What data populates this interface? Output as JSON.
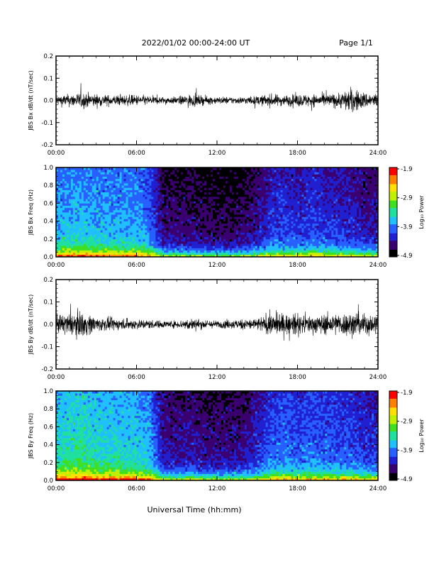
{
  "header": {
    "title": "2022/01/02  00:00-24:00 UT",
    "page": "Page 1/1"
  },
  "xaxis": {
    "label": "Universal Time (hh:mm)",
    "ticks": [
      "00:00",
      "06:00",
      "12:00",
      "18:00",
      "24:00"
    ],
    "range_hours": [
      0,
      24
    ]
  },
  "colors": {
    "colormap": [
      "#000000",
      "#3b0070",
      "#2020d0",
      "#2860ff",
      "#20c0ff",
      "#20e0a0",
      "#40e020",
      "#c0f000",
      "#ffe000",
      "#ff8000",
      "#ff0000"
    ]
  },
  "chart_data": [
    {
      "type": "line",
      "ylabel": "JBS Bx dB/dt (nT/sec)",
      "ylim": [
        -0.2,
        0.2
      ],
      "yticks": [
        "0.2",
        "0.1",
        "0.0",
        "-0.1",
        "-0.2"
      ],
      "x_hours": [
        0,
        1,
        2,
        3,
        4,
        5,
        6,
        7,
        8,
        9,
        10,
        11,
        12,
        13,
        14,
        15,
        16,
        17,
        18,
        19,
        20,
        21,
        22,
        23,
        24
      ],
      "amplitude": [
        0.03,
        0.035,
        0.045,
        0.035,
        0.03,
        0.03,
        0.03,
        0.025,
        0.02,
        0.02,
        0.035,
        0.025,
        0.02,
        0.02,
        0.02,
        0.025,
        0.035,
        0.03,
        0.035,
        0.035,
        0.035,
        0.04,
        0.07,
        0.045,
        0.04
      ]
    },
    {
      "type": "heatmap",
      "ylabel": "JBS Bx Freq (Hz)",
      "ylim": [
        0,
        1
      ],
      "yticks": [
        "1.0",
        "0.8",
        "0.6",
        "0.4",
        "0.2",
        "0.0"
      ],
      "colorbar_label": "Log₁₀ Power",
      "colorbar_ticks": [
        "-1.9",
        "-2.9",
        "-3.9",
        "-4.9"
      ],
      "clim": [
        -4.9,
        -1.9
      ],
      "x_hours": [
        0,
        1,
        2,
        3,
        4,
        5,
        6,
        7,
        8,
        9,
        10,
        11,
        12,
        13,
        14,
        15,
        16,
        17,
        18,
        19,
        20,
        21,
        22,
        23,
        24
      ],
      "level": [
        0.42,
        0.44,
        0.45,
        0.43,
        0.42,
        0.42,
        0.42,
        0.36,
        0.18,
        0.16,
        0.17,
        0.15,
        0.14,
        0.14,
        0.15,
        0.2,
        0.28,
        0.3,
        0.27,
        0.3,
        0.28,
        0.27,
        0.26,
        0.22,
        0.22
      ]
    },
    {
      "type": "line",
      "ylabel": "JBS By dB/dt (nT/sec)",
      "ylim": [
        -0.2,
        0.2
      ],
      "yticks": [
        "0.2",
        "0.1",
        "0.0",
        "-0.1",
        "-0.2"
      ],
      "x_hours": [
        0,
        1,
        2,
        3,
        4,
        5,
        6,
        7,
        8,
        9,
        10,
        11,
        12,
        13,
        14,
        15,
        16,
        17,
        18,
        19,
        20,
        21,
        22,
        23,
        24
      ],
      "amplitude": [
        0.05,
        0.06,
        0.07,
        0.04,
        0.035,
        0.03,
        0.03,
        0.025,
        0.02,
        0.02,
        0.035,
        0.025,
        0.02,
        0.025,
        0.03,
        0.035,
        0.06,
        0.06,
        0.055,
        0.05,
        0.055,
        0.06,
        0.07,
        0.06,
        0.06
      ]
    },
    {
      "type": "heatmap",
      "ylabel": "JBS By Freq (Hz)",
      "ylim": [
        0,
        1
      ],
      "yticks": [
        "1.0",
        "0.8",
        "0.6",
        "0.4",
        "0.2",
        "0.0"
      ],
      "colorbar_label": "Log₁₀ Power",
      "colorbar_ticks": [
        "-1.9",
        "-2.9",
        "-3.9",
        "-4.9"
      ],
      "clim": [
        -4.9,
        -1.9
      ],
      "x_hours": [
        0,
        1,
        2,
        3,
        4,
        5,
        6,
        7,
        8,
        9,
        10,
        11,
        12,
        13,
        14,
        15,
        16,
        17,
        18,
        19,
        20,
        21,
        22,
        23,
        24
      ],
      "level": [
        0.5,
        0.52,
        0.53,
        0.5,
        0.49,
        0.48,
        0.48,
        0.42,
        0.22,
        0.2,
        0.22,
        0.19,
        0.18,
        0.19,
        0.2,
        0.26,
        0.34,
        0.36,
        0.33,
        0.35,
        0.34,
        0.33,
        0.32,
        0.28,
        0.28
      ]
    }
  ]
}
